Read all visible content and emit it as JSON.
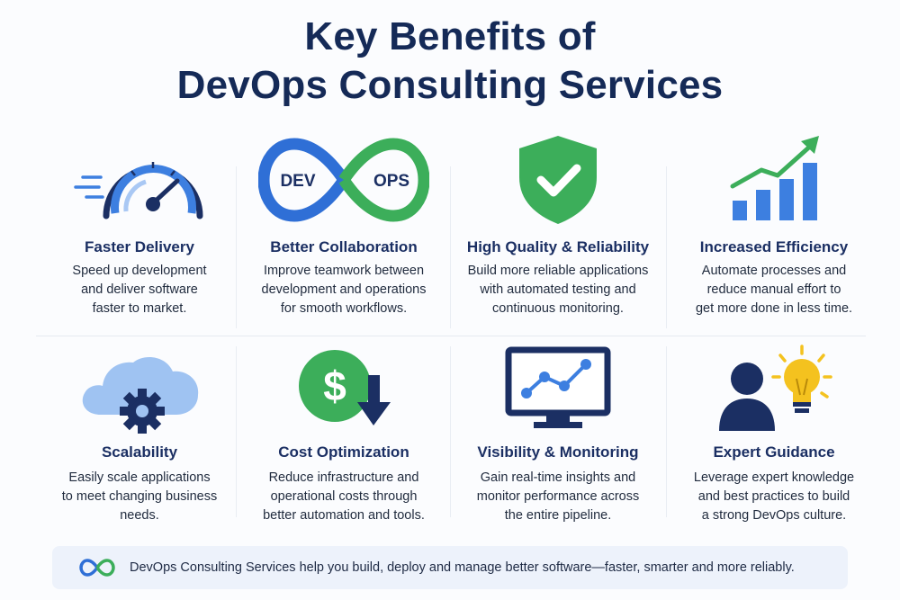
{
  "title_line1": "Key Benefits of",
  "title_line2": "DevOps Consulting Services",
  "colors": {
    "navy": "#152a57",
    "blue": "#2f6fd6",
    "green": "#3cae5a",
    "gold": "#f4c21f"
  },
  "benefits": [
    {
      "title": "Faster Delivery",
      "lines": [
        "Speed up development",
        "and deliver software",
        "faster to market."
      ],
      "icon": "speedometer-icon"
    },
    {
      "title": "Better Collaboration",
      "lines": [
        "Improve teamwork between",
        "development and operations",
        "for smooth workflows."
      ],
      "icon": "infinity-loop-icon",
      "icon_labels": [
        "DEV",
        "OPS"
      ]
    },
    {
      "title": "High Quality & Reliability",
      "lines": [
        "Build more reliable applications",
        "with automated testing and",
        "continuous monitoring."
      ],
      "icon": "shield-check-icon"
    },
    {
      "title": "Increased Efficiency",
      "lines": [
        "Automate processes and",
        "reduce manual effort to",
        "get more done in less time."
      ],
      "icon": "growth-chart-icon"
    },
    {
      "title": "Scalability",
      "lines": [
        "Easily scale applications",
        "to meet changing business",
        "needs."
      ],
      "icon": "cloud-gear-icon"
    },
    {
      "title": "Cost Optimization",
      "lines": [
        "Reduce infrastructure and",
        "operational costs through",
        "better automation and tools."
      ],
      "icon": "dollar-down-icon",
      "icon_labels": [
        "$"
      ]
    },
    {
      "title": "Visibility & Monitoring",
      "lines": [
        "Gain real-time insights and",
        "monitor performance across",
        "the entire pipeline."
      ],
      "icon": "monitor-graph-icon"
    },
    {
      "title": "Expert Guidance",
      "lines": [
        "Leverage expert knowledge",
        "and best practices to build",
        "a strong DevOps culture."
      ],
      "icon": "expert-lightbulb-icon"
    }
  ],
  "footer": {
    "icon": "infinity-icon",
    "text": "DevOps Consulting Services help you build, deploy and manage better software—faster, smarter and more reliably."
  }
}
